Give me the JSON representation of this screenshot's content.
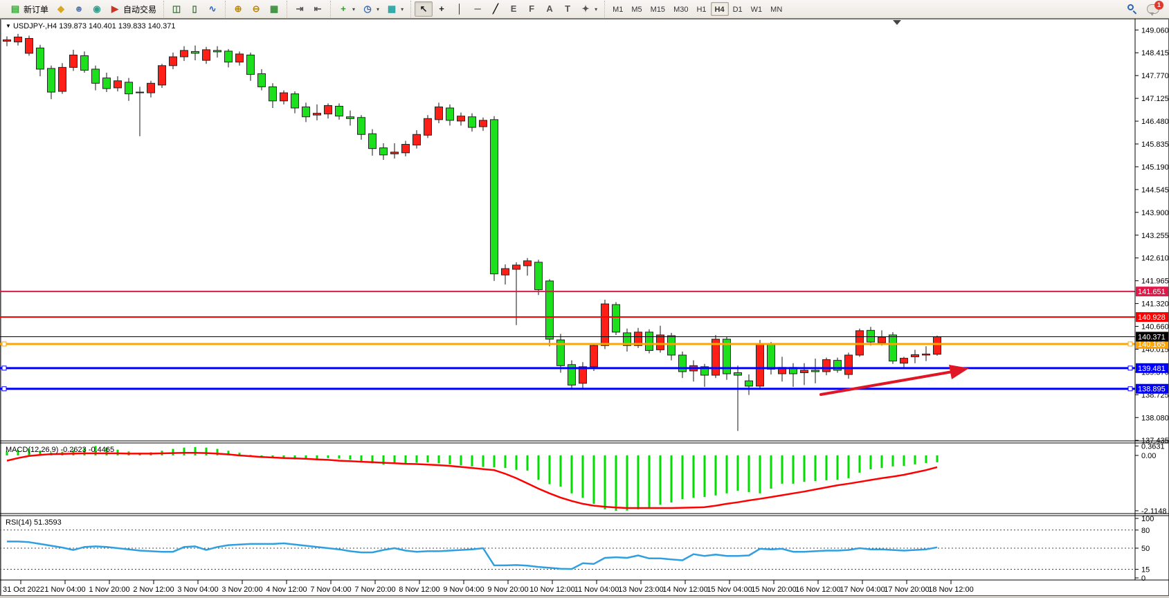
{
  "toolbar": {
    "groups": [
      {
        "name": "trade",
        "items": [
          {
            "name": "new-order-button",
            "icon": "new-order-icon",
            "glyph": "▤",
            "color": "#3aa43a",
            "label": "新订单"
          },
          {
            "name": "marker-button",
            "icon": "highlighter-icon",
            "glyph": "◆",
            "color": "#d9a821"
          },
          {
            "name": "profile-button",
            "icon": "profile-icon",
            "glyph": "☻",
            "color": "#5b79b0"
          },
          {
            "name": "signal-button",
            "icon": "signal-icon",
            "glyph": "◉",
            "color": "#2e9e8f"
          },
          {
            "name": "autotrade-button",
            "icon": "autotrade-icon",
            "glyph": "▶",
            "color": "#cc3322",
            "label": "自动交易"
          }
        ]
      },
      {
        "name": "chart-type",
        "items": [
          {
            "name": "bar-chart-button",
            "icon": "bar-chart-icon",
            "glyph": "◫",
            "color": "#447744"
          },
          {
            "name": "candlestick-button",
            "icon": "candlestick-icon",
            "glyph": "▯",
            "color": "#3c6e3c"
          },
          {
            "name": "line-chart-button",
            "icon": "line-chart-icon",
            "glyph": "∿",
            "color": "#3366bb"
          }
        ]
      },
      {
        "name": "zoom",
        "items": [
          {
            "name": "zoom-in-button",
            "icon": "zoom-in-icon",
            "glyph": "⊕",
            "color": "#b8860b"
          },
          {
            "name": "zoom-out-button",
            "icon": "zoom-out-icon",
            "glyph": "⊖",
            "color": "#b8860b"
          },
          {
            "name": "tile-windows-button",
            "icon": "tile-windows-icon",
            "glyph": "▦",
            "color": "#3a8a3a"
          }
        ]
      },
      {
        "name": "scroll",
        "items": [
          {
            "name": "auto-scroll-button",
            "icon": "auto-scroll-icon",
            "glyph": "⇥",
            "color": "#555555"
          },
          {
            "name": "chart-shift-button",
            "icon": "chart-shift-icon",
            "glyph": "⇤",
            "color": "#555555"
          }
        ]
      },
      {
        "name": "add-menus",
        "items": [
          {
            "name": "add-indicator-dropdown",
            "icon": "add-indicator-icon",
            "glyph": "+",
            "color": "#2a9d2a",
            "dropdown": true
          },
          {
            "name": "periods-dropdown",
            "icon": "clock-icon",
            "glyph": "◷",
            "color": "#3366bb",
            "dropdown": true
          },
          {
            "name": "templates-dropdown",
            "icon": "template-icon",
            "glyph": "▦",
            "color": "#2aa0a0",
            "dropdown": true
          }
        ]
      },
      {
        "name": "draw-tools",
        "items": [
          {
            "name": "cursor-button",
            "icon": "cursor-icon",
            "glyph": "↖",
            "color": "#222222",
            "active": true
          },
          {
            "name": "crosshair-button",
            "icon": "crosshair-icon",
            "glyph": "+",
            "color": "#222222"
          },
          {
            "name": "vertical-line-button",
            "icon": "vertical-line-icon",
            "glyph": "│",
            "color": "#222222"
          },
          {
            "name": "horizontal-line-button",
            "icon": "horizontal-line-icon",
            "glyph": "─",
            "color": "#222222"
          },
          {
            "name": "trendline-button",
            "icon": "trendline-icon",
            "glyph": "╱",
            "color": "#222222"
          },
          {
            "name": "channel-button",
            "icon": "channel-icon",
            "glyph": "E",
            "color": "#555555"
          },
          {
            "name": "fibonacci-button",
            "icon": "fibonacci-icon",
            "glyph": "F",
            "color": "#555555"
          },
          {
            "name": "text-button",
            "icon": "text-icon",
            "glyph": "A",
            "color": "#555555"
          },
          {
            "name": "text-label-button",
            "icon": "text-label-icon",
            "glyph": "T",
            "color": "#555555"
          },
          {
            "name": "shapes-dropdown",
            "icon": "shapes-icon",
            "glyph": "✦",
            "color": "#555555",
            "dropdown": true
          }
        ]
      }
    ],
    "timeframes": [
      "M1",
      "M5",
      "M15",
      "M30",
      "H1",
      "H4",
      "D1",
      "W1",
      "MN"
    ],
    "active_timeframe": "H4",
    "notification_badge": "1"
  },
  "chart": {
    "title": {
      "symbol_period": "USDJPY-,H4",
      "ohlc_text": "139.873 140.401 139.833 140.371",
      "collapse_arrow": "▼"
    },
    "price_axis": {
      "ticks": [
        "149.060",
        "148.415",
        "147.770",
        "147.125",
        "146.480",
        "145.835",
        "145.190",
        "144.545",
        "143.900",
        "143.255",
        "142.610",
        "141.965",
        "141.320",
        "140.660",
        "140.015",
        "139.370",
        "138.725",
        "138.080",
        "137.435"
      ]
    },
    "current_price": {
      "label": "140.371",
      "value": 140.371,
      "label_bg": "#000000",
      "label_fg": "#ffffff"
    },
    "hlines": [
      {
        "name": "resistance-line-1",
        "label": "141.651",
        "value": 141.651,
        "color": "#e01748",
        "width": 2,
        "handles": false
      },
      {
        "name": "resistance-line-2",
        "label": "140.928",
        "value": 140.928,
        "color": "#ff0000",
        "width": 2,
        "handles": false
      },
      {
        "name": "pivot-line",
        "label": "140.165",
        "value": 140.165,
        "color": "#ffa500",
        "width": 3,
        "handles": true
      },
      {
        "name": "support-line-1",
        "label": "139.481",
        "value": 139.481,
        "color": "#0000ff",
        "width": 3,
        "handles": true
      },
      {
        "name": "support-line-2",
        "label": "138.895",
        "value": 138.895,
        "color": "#0000ff",
        "width": 3,
        "handles": true
      }
    ],
    "trend_arrow": {
      "color": "#e01525",
      "from_price": 138.73,
      "to_price": 139.47,
      "comment": "red up arrow bottom-left to right"
    },
    "time_axis": {
      "labels": [
        "31 Oct 2022",
        "1 Nov 04:00",
        "1 Nov 20:00",
        "2 Nov 12:00",
        "3 Nov 04:00",
        "3 Nov 20:00",
        "4 Nov 12:00",
        "7 Nov 04:00",
        "7 Nov 20:00",
        "8 Nov 12:00",
        "9 Nov 04:00",
        "9 Nov 20:00",
        "10 Nov 12:00",
        "11 Nov 04:00",
        "13 Nov 23:00",
        "14 Nov 12:00",
        "15 Nov 04:00",
        "15 Nov 20:00",
        "16 Nov 12:00",
        "17 Nov 04:00",
        "17 Nov 20:00",
        "18 Nov 12:00"
      ]
    },
    "colors": {
      "candle_up": "#ff1f16",
      "candle_down": "#1ce01c",
      "candle_outline": "#222222",
      "wick": "#111111",
      "background": "#ffffff",
      "frame": "#555555"
    }
  },
  "macd_panel": {
    "label": "MACD(12,26,9) -0.2623 -0.4465",
    "axis_labels": [
      "0.3631",
      "0.00",
      "-2.1148"
    ],
    "axis_values": [
      0.3631,
      0.0,
      -2.1148
    ],
    "histogram_color": "#00dd00",
    "signal_color": "#ff0000"
  },
  "rsi_panel": {
    "label": "RSI(14) 51.3593",
    "axis_labels": [
      "100",
      "80",
      "50",
      "15",
      "0"
    ],
    "axis_values": [
      100,
      80,
      50,
      15,
      0
    ],
    "dashed_levels": [
      80,
      50,
      15
    ],
    "line_color": "#2f9fe0"
  },
  "chart_data": {
    "type": "candlestick",
    "symbol": "USDJPY-",
    "period": "H4",
    "ylim": [
      137.2,
      149.3
    ],
    "ohlc": [
      [
        148.74,
        148.88,
        148.6,
        148.78
      ],
      [
        148.72,
        148.95,
        148.62,
        148.86
      ],
      [
        148.4,
        148.9,
        148.33,
        148.82
      ],
      [
        148.55,
        148.64,
        147.75,
        147.95
      ],
      [
        147.97,
        148.05,
        147.1,
        147.3
      ],
      [
        147.32,
        148.12,
        147.25,
        148.0
      ],
      [
        148.0,
        148.5,
        147.9,
        148.35
      ],
      [
        148.33,
        148.45,
        147.85,
        147.92
      ],
      [
        147.95,
        148.05,
        147.35,
        147.55
      ],
      [
        147.7,
        147.85,
        147.3,
        147.4
      ],
      [
        147.42,
        147.75,
        147.32,
        147.62
      ],
      [
        147.58,
        147.7,
        147.05,
        147.25
      ],
      [
        147.3,
        147.45,
        146.05,
        147.28
      ],
      [
        147.28,
        147.62,
        147.15,
        147.55
      ],
      [
        147.5,
        148.1,
        147.42,
        148.05
      ],
      [
        148.05,
        148.42,
        147.95,
        148.3
      ],
      [
        148.3,
        148.6,
        148.18,
        148.48
      ],
      [
        148.45,
        148.62,
        148.2,
        148.4
      ],
      [
        148.2,
        148.58,
        148.1,
        148.5
      ],
      [
        148.48,
        148.6,
        148.28,
        148.44
      ],
      [
        148.46,
        148.52,
        148.0,
        148.15
      ],
      [
        148.15,
        148.45,
        148.05,
        148.38
      ],
      [
        148.35,
        148.42,
        147.62,
        147.8
      ],
      [
        147.82,
        147.95,
        147.35,
        147.45
      ],
      [
        147.45,
        147.55,
        146.85,
        147.05
      ],
      [
        147.05,
        147.35,
        146.95,
        147.28
      ],
      [
        147.25,
        147.32,
        146.7,
        146.85
      ],
      [
        146.88,
        147.0,
        146.45,
        146.6
      ],
      [
        146.65,
        146.95,
        146.5,
        146.7
      ],
      [
        146.68,
        146.98,
        146.55,
        146.92
      ],
      [
        146.9,
        146.98,
        146.52,
        146.62
      ],
      [
        146.6,
        146.78,
        146.35,
        146.55
      ],
      [
        146.58,
        146.65,
        145.95,
        146.1
      ],
      [
        146.12,
        146.25,
        145.5,
        145.7
      ],
      [
        145.72,
        145.85,
        145.38,
        145.52
      ],
      [
        145.55,
        145.85,
        145.42,
        145.6
      ],
      [
        145.58,
        145.92,
        145.48,
        145.82
      ],
      [
        145.8,
        146.22,
        145.7,
        146.1
      ],
      [
        146.08,
        146.65,
        146.0,
        146.55
      ],
      [
        146.52,
        147.0,
        146.42,
        146.88
      ],
      [
        146.85,
        146.95,
        146.35,
        146.5
      ],
      [
        146.48,
        146.72,
        146.35,
        146.62
      ],
      [
        146.6,
        146.7,
        146.18,
        146.3
      ],
      [
        146.32,
        146.58,
        146.2,
        146.5
      ],
      [
        146.52,
        146.62,
        141.95,
        142.15
      ],
      [
        142.12,
        142.42,
        141.85,
        142.3
      ],
      [
        142.28,
        142.48,
        140.7,
        142.4
      ],
      [
        142.38,
        142.6,
        142.1,
        142.52
      ],
      [
        142.48,
        142.55,
        141.55,
        141.7
      ],
      [
        141.95,
        142.0,
        140.1,
        140.3
      ],
      [
        140.28,
        140.45,
        139.35,
        139.55
      ],
      [
        139.58,
        139.7,
        138.88,
        139.0
      ],
      [
        139.05,
        139.65,
        138.92,
        139.52
      ],
      [
        139.52,
        140.18,
        139.4,
        140.12
      ],
      [
        140.12,
        141.42,
        140.02,
        141.3
      ],
      [
        141.28,
        141.35,
        140.42,
        140.5
      ],
      [
        140.48,
        140.6,
        139.95,
        140.12
      ],
      [
        140.12,
        140.62,
        140.05,
        140.5
      ],
      [
        140.5,
        140.58,
        139.9,
        139.98
      ],
      [
        140.0,
        140.68,
        139.92,
        140.42
      ],
      [
        140.4,
        140.48,
        139.7,
        139.85
      ],
      [
        139.85,
        139.95,
        139.2,
        139.38
      ],
      [
        139.4,
        139.7,
        139.1,
        139.55
      ],
      [
        139.52,
        139.6,
        138.95,
        139.28
      ],
      [
        139.28,
        140.42,
        139.2,
        140.3
      ],
      [
        140.3,
        140.38,
        139.15,
        139.32
      ],
      [
        139.35,
        139.55,
        137.7,
        139.28
      ],
      [
        139.12,
        139.3,
        138.72,
        138.97
      ],
      [
        138.97,
        140.28,
        138.9,
        140.15
      ],
      [
        140.15,
        140.22,
        139.3,
        139.45
      ],
      [
        139.32,
        139.8,
        139.1,
        139.5
      ],
      [
        139.5,
        139.62,
        138.95,
        139.32
      ],
      [
        139.35,
        139.62,
        139.0,
        139.42
      ],
      [
        139.42,
        139.75,
        139.05,
        139.38
      ],
      [
        139.38,
        139.78,
        139.28,
        139.72
      ],
      [
        139.7,
        139.78,
        139.35,
        139.42
      ],
      [
        139.3,
        139.92,
        139.18,
        139.85
      ],
      [
        139.85,
        140.6,
        139.8,
        140.54
      ],
      [
        140.55,
        140.65,
        140.12,
        140.22
      ],
      [
        140.2,
        140.55,
        140.12,
        140.36
      ],
      [
        140.42,
        140.5,
        139.6,
        139.68
      ],
      [
        139.62,
        139.8,
        139.48,
        139.76
      ],
      [
        139.8,
        140.0,
        139.62,
        139.86
      ],
      [
        139.85,
        140.1,
        139.68,
        139.88
      ],
      [
        139.873,
        140.401,
        139.833,
        140.371
      ]
    ],
    "macd_histogram": [
      0.15,
      0.2,
      0.25,
      0.18,
      0.1,
      0.14,
      0.2,
      0.28,
      0.36,
      0.3,
      0.22,
      0.15,
      0.1,
      0.12,
      0.18,
      0.25,
      0.3,
      0.32,
      0.3,
      0.25,
      0.18,
      0.1,
      0.02,
      -0.05,
      -0.1,
      -0.12,
      -0.15,
      -0.14,
      -0.12,
      -0.1,
      -0.12,
      -0.16,
      -0.22,
      -0.3,
      -0.35,
      -0.33,
      -0.3,
      -0.28,
      -0.27,
      -0.3,
      -0.34,
      -0.38,
      -0.42,
      -0.44,
      -0.45,
      -0.48,
      -0.55,
      -0.58,
      -0.93,
      -1.1,
      -1.19,
      -1.45,
      -1.62,
      -1.85,
      -2.06,
      -2.1148,
      -2.11,
      -2.06,
      -1.98,
      -1.88,
      -1.8,
      -1.67,
      -1.62,
      -1.59,
      -1.53,
      -1.45,
      -1.35,
      -1.4,
      -1.45,
      -1.27,
      -1.08,
      -1.08,
      -1.01,
      -0.98,
      -0.95,
      -0.93,
      -0.87,
      -0.66,
      -0.53,
      -0.48,
      -0.42,
      -0.4,
      -0.34,
      -0.29,
      -0.2623
    ],
    "macd_signal": [
      -0.2,
      -0.1,
      -0.02,
      0.02,
      0.05,
      0.06,
      0.07,
      0.08,
      0.08,
      0.08,
      0.08,
      0.07,
      0.07,
      0.07,
      0.08,
      0.09,
      0.1,
      0.1,
      0.09,
      0.07,
      0.04,
      0.0,
      -0.03,
      -0.06,
      -0.08,
      -0.1,
      -0.11,
      -0.13,
      -0.15,
      -0.17,
      -0.2,
      -0.22,
      -0.24,
      -0.26,
      -0.28,
      -0.3,
      -0.32,
      -0.33,
      -0.35,
      -0.37,
      -0.4,
      -0.44,
      -0.48,
      -0.52,
      -0.56,
      -0.7,
      -0.87,
      -1.07,
      -1.27,
      -1.45,
      -1.61,
      -1.74,
      -1.85,
      -1.92,
      -1.96,
      -1.99,
      -2.01,
      -2.01,
      -2.01,
      -2.01,
      -2.01,
      -2.0,
      -1.99,
      -1.98,
      -1.92,
      -1.85,
      -1.79,
      -1.72,
      -1.66,
      -1.59,
      -1.52,
      -1.45,
      -1.38,
      -1.3,
      -1.22,
      -1.14,
      -1.08,
      -1.01,
      -0.94,
      -0.87,
      -0.81,
      -0.74,
      -0.65,
      -0.56,
      -0.4465
    ],
    "rsi_values": [
      61,
      61,
      60,
      57,
      54,
      51,
      47,
      52,
      53,
      52,
      50,
      48,
      46,
      45,
      44,
      44,
      52,
      53,
      47,
      52,
      55,
      56,
      57,
      57,
      57,
      58,
      56,
      54,
      52,
      50,
      48,
      45,
      43,
      43,
      47,
      50,
      46,
      44,
      45,
      45,
      46,
      47,
      48,
      50,
      21.5,
      21.5,
      22,
      21,
      19,
      17.5,
      16,
      15.5,
      25,
      24,
      34,
      35,
      34,
      38,
      33,
      33,
      31.5,
      30,
      40,
      37,
      39.5,
      37,
      37,
      38,
      49,
      48,
      49,
      44,
      44,
      45,
      46,
      46,
      47,
      50,
      48,
      48,
      47,
      46,
      47,
      48,
      51.36
    ]
  }
}
